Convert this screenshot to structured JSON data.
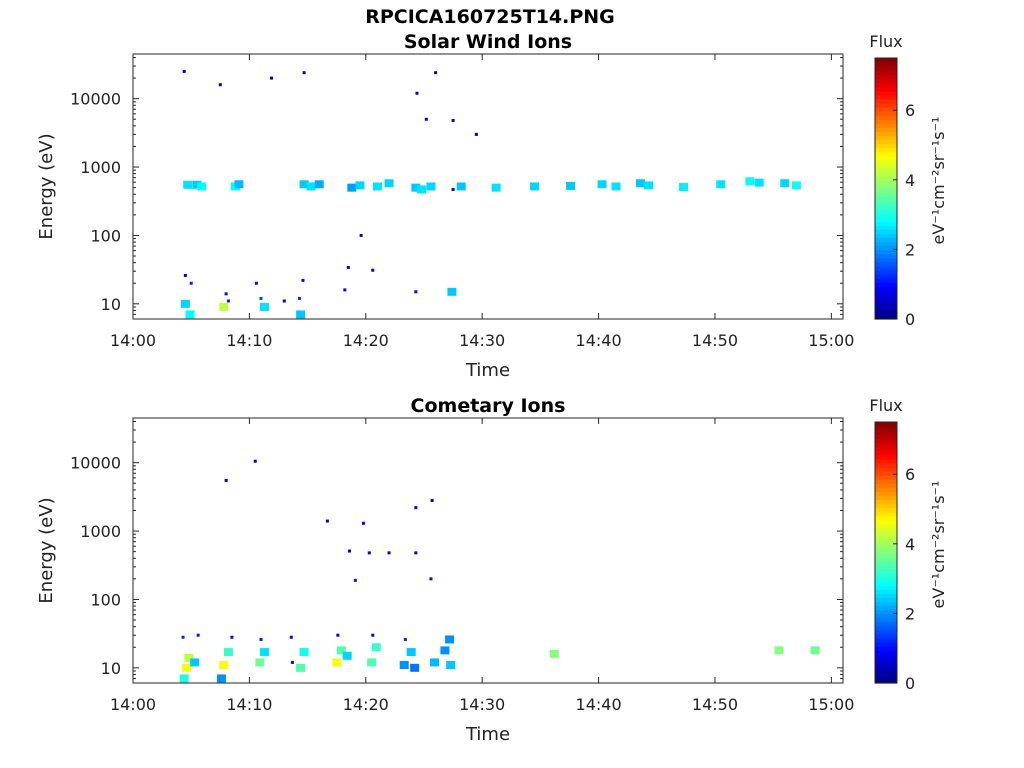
{
  "figure_title": "RPCICA160725T14.PNG",
  "chart_data": [
    {
      "type": "heatmap",
      "title": "Solar Wind Ions",
      "xlabel": "Time",
      "ylabel": "Energy (eV)",
      "x_ticks": [
        "14:00",
        "14:10",
        "14:20",
        "14:30",
        "14:40",
        "14:50",
        "15:00"
      ],
      "x_range_min": [
        0,
        61
      ],
      "y_ticks": [
        "10",
        "100",
        "1000",
        "10000"
      ],
      "y_scale": "log",
      "y_range": [
        6,
        45000
      ],
      "colorbar": {
        "label": "Flux",
        "unit": "eV⁻¹cm⁻²sr⁻¹s⁻¹",
        "range": [
          0,
          7.5
        ],
        "ticks": [
          "0",
          "2",
          "4",
          "6"
        ],
        "colormap": "jet"
      },
      "cells": [
        [
          4.5,
          26,
          0.8
        ],
        [
          5.0,
          20,
          1.2
        ],
        [
          4.5,
          10,
          2.5
        ],
        [
          4.9,
          7,
          2.8
        ],
        [
          4.7,
          550,
          2.6
        ],
        [
          5.5,
          550,
          2.4
        ],
        [
          5.9,
          520,
          2.8
        ],
        [
          8.0,
          14,
          1.0
        ],
        [
          7.8,
          9,
          4.2
        ],
        [
          8.2,
          11,
          1.2
        ],
        [
          8.8,
          520,
          2.8
        ],
        [
          9.1,
          560,
          2.3
        ],
        [
          11.0,
          12,
          1.4
        ],
        [
          11.3,
          9,
          2.6
        ],
        [
          10.6,
          20,
          1.0
        ],
        [
          13.0,
          11,
          0.8
        ],
        [
          14.3,
          12,
          1.2
        ],
        [
          14.4,
          7,
          2.4
        ],
        [
          14.6,
          22,
          1.0
        ],
        [
          14.7,
          560,
          2.4
        ],
        [
          15.3,
          520,
          2.6
        ],
        [
          16.0,
          560,
          2.2
        ],
        [
          18.2,
          16,
          1.0
        ],
        [
          18.5,
          34,
          0.8
        ],
        [
          18.8,
          500,
          2.1
        ],
        [
          19.5,
          540,
          2.5
        ],
        [
          21.0,
          520,
          2.6
        ],
        [
          22.0,
          580,
          2.5
        ],
        [
          24.3,
          15,
          0.9
        ],
        [
          24.3,
          500,
          2.4
        ],
        [
          24.8,
          470,
          2.6
        ],
        [
          25.6,
          520,
          2.5
        ],
        [
          27.4,
          15,
          2.4
        ],
        [
          27.5,
          470,
          0.8
        ],
        [
          28.2,
          520,
          2.4
        ],
        [
          31.2,
          500,
          2.6
        ],
        [
          34.5,
          520,
          2.5
        ],
        [
          37.6,
          530,
          2.4
        ],
        [
          40.3,
          560,
          2.5
        ],
        [
          41.5,
          520,
          2.6
        ],
        [
          43.6,
          580,
          2.4
        ],
        [
          44.3,
          540,
          2.6
        ],
        [
          47.3,
          510,
          2.7
        ],
        [
          50.5,
          560,
          2.6
        ],
        [
          53.0,
          620,
          2.8
        ],
        [
          53.8,
          590,
          2.6
        ],
        [
          56.0,
          580,
          2.5
        ],
        [
          57.0,
          540,
          2.9
        ],
        [
          4.4,
          25000,
          0.5
        ],
        [
          7.5,
          16000,
          0.5
        ],
        [
          11.9,
          20000,
          0.6
        ],
        [
          14.7,
          24000,
          0.5
        ],
        [
          26.0,
          24000,
          0.6
        ],
        [
          24.4,
          12000,
          0.7
        ],
        [
          25.2,
          5000,
          0.8
        ],
        [
          27.5,
          4800,
          0.7
        ],
        [
          29.5,
          3000,
          0.6
        ],
        [
          19.6,
          100,
          0.7
        ],
        [
          20.6,
          31,
          0.8
        ]
      ]
    },
    {
      "type": "heatmap",
      "title": "Cometary Ions",
      "xlabel": "Time",
      "ylabel": "Energy (eV)",
      "x_ticks": [
        "14:00",
        "14:10",
        "14:20",
        "14:30",
        "14:40",
        "14:50",
        "15:00"
      ],
      "x_range_min": [
        0,
        61
      ],
      "y_ticks": [
        "10",
        "100",
        "1000",
        "10000"
      ],
      "y_scale": "log",
      "y_range": [
        6,
        45000
      ],
      "colorbar": {
        "label": "Flux",
        "unit": "eV⁻¹cm⁻²sr⁻¹s⁻¹",
        "range": [
          0,
          7.5
        ],
        "ticks": [
          "0",
          "2",
          "4",
          "6"
        ],
        "colormap": "jet"
      },
      "cells": [
        [
          4.6,
          10,
          4.6
        ],
        [
          4.8,
          14,
          4.2
        ],
        [
          4.4,
          7,
          3.0
        ],
        [
          5.3,
          12,
          2.4
        ],
        [
          7.8,
          11,
          4.6
        ],
        [
          8.2,
          17,
          3.2
        ],
        [
          7.6,
          7,
          2.0
        ],
        [
          10.9,
          12,
          3.6
        ],
        [
          11.3,
          17,
          2.6
        ],
        [
          13.7,
          12,
          1.0
        ],
        [
          14.4,
          10,
          3.4
        ],
        [
          14.7,
          17,
          2.9
        ],
        [
          17.5,
          12,
          4.6
        ],
        [
          17.9,
          18,
          3.4
        ],
        [
          18.4,
          15,
          2.5
        ],
        [
          20.5,
          12,
          3.4
        ],
        [
          20.9,
          20,
          3.2
        ],
        [
          23.3,
          11,
          2.0
        ],
        [
          23.9,
          17,
          2.4
        ],
        [
          23.4,
          26,
          1.2
        ],
        [
          24.2,
          10,
          1.8
        ],
        [
          25.9,
          12,
          2.3
        ],
        [
          26.8,
          18,
          2.0
        ],
        [
          27.3,
          11,
          2.4
        ],
        [
          27.2,
          26,
          2.0
        ],
        [
          36.2,
          16,
          3.8
        ],
        [
          55.5,
          18,
          3.8
        ],
        [
          58.6,
          18,
          3.6
        ],
        [
          4.3,
          28,
          1.2
        ],
        [
          5.6,
          30,
          1.1
        ],
        [
          8.5,
          28,
          1.0
        ],
        [
          11.0,
          26,
          1.1
        ],
        [
          13.6,
          28,
          0.9
        ],
        [
          17.6,
          30,
          0.7
        ],
        [
          20.6,
          30,
          0.8
        ],
        [
          24.3,
          2200,
          0.7
        ],
        [
          25.7,
          2800,
          0.6
        ],
        [
          24.3,
          480,
          0.7
        ],
        [
          25.6,
          200,
          1.0
        ],
        [
          19.8,
          1300,
          0.7
        ],
        [
          20.3,
          480,
          0.8
        ],
        [
          22.0,
          480,
          0.7
        ],
        [
          16.7,
          1400,
          0.6
        ],
        [
          18.6,
          510,
          0.7
        ],
        [
          19.1,
          190,
          1.1
        ],
        [
          8.0,
          5500,
          0.5
        ],
        [
          10.5,
          10500,
          0.5
        ]
      ]
    }
  ]
}
